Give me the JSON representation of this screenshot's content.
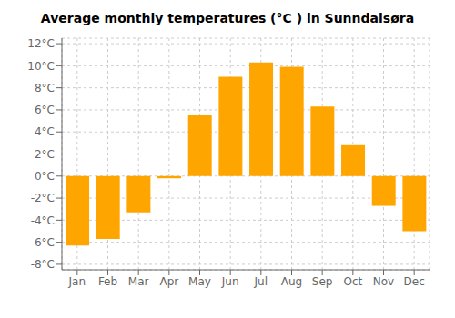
{
  "chart_data": {
    "type": "bar",
    "title": "Average monthly temperatures (°C ) in Sunndalsøra",
    "categories": [
      "Jan",
      "Feb",
      "Mar",
      "Apr",
      "May",
      "Jun",
      "Jul",
      "Aug",
      "Sep",
      "Oct",
      "Nov",
      "Dec"
    ],
    "values": [
      -6.3,
      -5.7,
      -3.3,
      -0.2,
      5.5,
      9.0,
      10.3,
      9.9,
      6.3,
      2.8,
      -2.7,
      -5.0
    ],
    "color": "#FFA500",
    "ylim": [
      -8.5,
      12.5
    ],
    "yticks": [
      {
        "value": -8,
        "label": "-8°C"
      },
      {
        "value": -6,
        "label": "-6°C"
      },
      {
        "value": -4,
        "label": "-4°C"
      },
      {
        "value": -2,
        "label": "-2°C"
      },
      {
        "value": 0,
        "label": "0°C"
      },
      {
        "value": 2,
        "label": "2°C"
      },
      {
        "value": 4,
        "label": "4°C"
      },
      {
        "value": 6,
        "label": "6°C"
      },
      {
        "value": 8,
        "label": "8°C"
      },
      {
        "value": 10,
        "label": "10°C"
      },
      {
        "value": 12,
        "label": "12°C"
      }
    ],
    "grid": true
  }
}
